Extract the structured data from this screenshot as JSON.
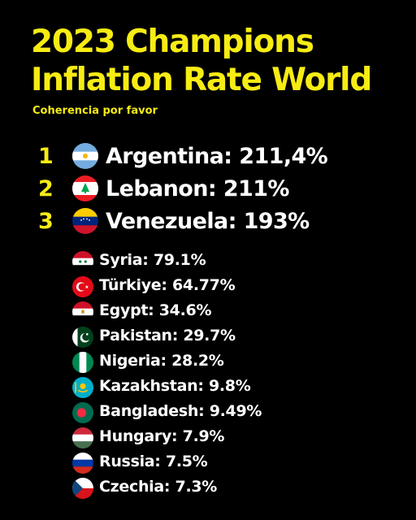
{
  "title_line1": "2023 Champions",
  "title_line2": "Inflation Rate World",
  "subtitle": "Coherencia por favor",
  "top": [
    {
      "rank": "1",
      "label": "Argentina: 211,4%",
      "flag": "argentina-flag-icon"
    },
    {
      "rank": "2",
      "label": "Lebanon: 211%",
      "flag": "lebanon-flag-icon"
    },
    {
      "rank": "3",
      "label": "Venezuela: 193%",
      "flag": "venezuela-flag-icon"
    }
  ],
  "rest": [
    {
      "label": "Syria: 79.1%",
      "flag": "syria-flag-icon"
    },
    {
      "label": "Türkiye: 64.77%",
      "flag": "turkiye-flag-icon"
    },
    {
      "label": "Egypt: 34.6%",
      "flag": "egypt-flag-icon"
    },
    {
      "label": "Pakistan: 29.7%",
      "flag": "pakistan-flag-icon"
    },
    {
      "label": "Nigeria: 28.2%",
      "flag": "nigeria-flag-icon"
    },
    {
      "label": "Kazakhstan: 9.8%",
      "flag": "kazakhstan-flag-icon"
    },
    {
      "label": "Bangladesh: 9.49%",
      "flag": "bangladesh-flag-icon"
    },
    {
      "label": "Hungary: 7.9%",
      "flag": "hungary-flag-icon"
    },
    {
      "label": "Russia: 7.5%",
      "flag": "russia-flag-icon"
    },
    {
      "label": "Czechia: 7.3%",
      "flag": "czechia-flag-icon"
    }
  ],
  "colors": {
    "accent": "#f7ec13",
    "background": "#000000",
    "text": "#ffffff"
  }
}
